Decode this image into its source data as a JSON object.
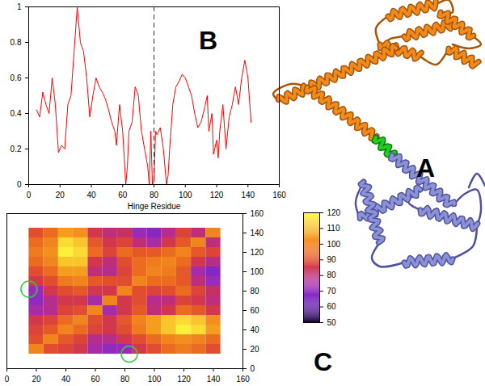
{
  "chart_data": [
    {
      "type": "line",
      "title": "B",
      "x_label": "Hinge Residue",
      "x": [
        5,
        7,
        9,
        11,
        13,
        15,
        17,
        19,
        21,
        23,
        25,
        27,
        29,
        31,
        33,
        35,
        37,
        39,
        41,
        43,
        45,
        47,
        49,
        51,
        53,
        55,
        56,
        58,
        60,
        62,
        63,
        64,
        66,
        68,
        70,
        72,
        74,
        76,
        77,
        78,
        79,
        80,
        81,
        82,
        84,
        86,
        87,
        88,
        89,
        90,
        92,
        94,
        96,
        98,
        100,
        102,
        104,
        106,
        108,
        110,
        112,
        114,
        115,
        117,
        118,
        120,
        121,
        122,
        124,
        126,
        128,
        130,
        132,
        134,
        136,
        138,
        140,
        142
      ],
      "values": [
        0.42,
        0.38,
        0.52,
        0.45,
        0.4,
        0.6,
        0.45,
        0.18,
        0.22,
        0.2,
        0.45,
        0.5,
        0.75,
        1.0,
        0.8,
        0.75,
        0.6,
        0.38,
        0.5,
        0.6,
        0.55,
        0.52,
        0.48,
        0.42,
        0.35,
        0.3,
        0.22,
        0.45,
        0.3,
        0.0,
        0.1,
        0.3,
        0.35,
        0.55,
        0.5,
        0.3,
        0.2,
        0.1,
        0.0,
        0.3,
        0.0,
        0.02,
        0.3,
        0.28,
        0.32,
        0.2,
        0.1,
        0.0,
        0.05,
        0.2,
        0.45,
        0.55,
        0.58,
        0.62,
        0.6,
        0.55,
        0.5,
        0.4,
        0.32,
        0.35,
        0.42,
        0.5,
        0.3,
        0.4,
        0.17,
        0.25,
        0.15,
        0.3,
        0.45,
        0.2,
        0.38,
        0.45,
        0.55,
        0.45,
        0.6,
        0.7,
        0.6,
        0.35
      ],
      "color": "#ff0000",
      "vline": 80,
      "xlim": [
        0,
        160
      ],
      "xticks": [
        0,
        20,
        40,
        60,
        80,
        100,
        120,
        140,
        160
      ],
      "ylim": [
        0,
        1
      ],
      "yticks": [
        0,
        0.2,
        0.4,
        0.6,
        0.8,
        1
      ],
      "grid": false
    },
    {
      "type": "heatmap",
      "title": "C",
      "x": [
        20,
        30,
        40,
        50,
        60,
        70,
        80,
        90,
        100,
        110,
        120,
        130,
        140
      ],
      "y": [
        20,
        30,
        40,
        50,
        60,
        70,
        80,
        90,
        100,
        110,
        120,
        130,
        140
      ],
      "z": [
        [
          100,
          90,
          88,
          85,
          75,
          70,
          72,
          85,
          90,
          95,
          98,
          95,
          90
        ],
        [
          90,
          100,
          92,
          88,
          78,
          78,
          85,
          90,
          95,
          100,
          102,
          100,
          95
        ],
        [
          88,
          92,
          100,
          95,
          88,
          85,
          90,
          98,
          105,
          112,
          118,
          115,
          105
        ],
        [
          85,
          88,
          95,
          100,
          90,
          85,
          92,
          100,
          105,
          112,
          115,
          112,
          102
        ],
        [
          75,
          78,
          88,
          90,
          100,
          75,
          85,
          92,
          80,
          85,
          95,
          92,
          85
        ],
        [
          70,
          78,
          85,
          85,
          75,
          100,
          85,
          90,
          78,
          80,
          88,
          85,
          80
        ],
        [
          72,
          85,
          90,
          92,
          85,
          85,
          100,
          90,
          88,
          90,
          95,
          88,
          82
        ],
        [
          85,
          90,
          98,
          100,
          92,
          90,
          90,
          100,
          95,
          95,
          92,
          80,
          72
        ],
        [
          90,
          95,
          105,
          105,
          80,
          78,
          88,
          95,
          100,
          98,
          92,
          75,
          68
        ],
        [
          95,
          100,
          112,
          112,
          85,
          80,
          90,
          95,
          98,
          100,
          95,
          85,
          78
        ],
        [
          98,
          102,
          118,
          115,
          95,
          88,
          95,
          92,
          92,
          95,
          100,
          92,
          88
        ],
        [
          95,
          100,
          115,
          112,
          92,
          85,
          88,
          80,
          75,
          85,
          92,
          100,
          80
        ],
        [
          90,
          95,
          105,
          102,
          85,
          80,
          82,
          72,
          68,
          78,
          88,
          80,
          100
        ]
      ],
      "highlights": [
        {
          "x": 15,
          "y": 82
        },
        {
          "x": 83,
          "y": 15
        }
      ],
      "xlim": [
        0,
        160
      ],
      "xticks": [
        0,
        20,
        40,
        60,
        80,
        100,
        120,
        140,
        160
      ],
      "ylim": [
        0,
        160
      ],
      "yticks": [
        0,
        20,
        40,
        60,
        80,
        100,
        120,
        140,
        160
      ],
      "colorbar": {
        "range": [
          50,
          120
        ],
        "ticks": [
          50,
          60,
          70,
          80,
          90,
          100,
          110,
          120
        ]
      }
    }
  ],
  "structure": {
    "label": "A"
  }
}
